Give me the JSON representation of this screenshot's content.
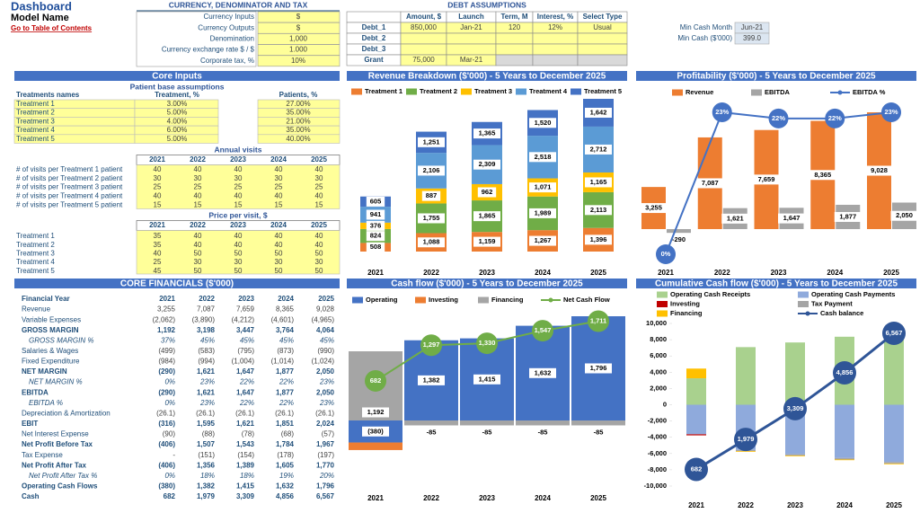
{
  "header": {
    "title": "Dashboard",
    "subtitle": "Model Name",
    "link": "Go to Table of Contents"
  },
  "currency": {
    "title": "CURRENCY, DENOMINATOR AND TAX",
    "rows": [
      [
        "Currency Inputs",
        "$"
      ],
      [
        "Currency Outputs",
        "$"
      ],
      [
        "Denomination",
        "1,000"
      ],
      [
        "Currency exchange rate $ / $",
        "1.000"
      ],
      [
        "Corporate tax, %",
        "10%"
      ]
    ]
  },
  "debt": {
    "title": "DEBT ASSUMPTIONS",
    "columns": [
      "Amount, $",
      "Launch",
      "Term, M",
      "Interest, %",
      "Select Type"
    ],
    "rows": [
      [
        "Debt_1",
        "850,000",
        "Jan-21",
        "120",
        "12%",
        "Usual"
      ],
      [
        "Debt_2"
      ],
      [
        "Debt_3"
      ],
      [
        "Grant",
        "75,000",
        "Mar-21"
      ]
    ]
  },
  "min_cash": {
    "rows": [
      [
        "Min Cash Month",
        "Jun-21"
      ],
      [
        "Min Cash ($'000)",
        "399.0"
      ]
    ]
  },
  "core_inputs": {
    "title": "Core Inputs",
    "patients": {
      "title": "Patient base assumptions",
      "columns": [
        "Treatments names",
        "Treatment, %",
        "Patients, %"
      ],
      "rows": [
        [
          "Treatment 1",
          "3.00%",
          "27.00%"
        ],
        [
          "Treatment 2",
          "5.00%",
          "35.00%"
        ],
        [
          "Treatment 3",
          "4.00%",
          "21.00%"
        ],
        [
          "Treatment 4",
          "6.00%",
          "35.00%"
        ],
        [
          "Treatment 5",
          "5.00%",
          "40.00%"
        ]
      ]
    },
    "visits": {
      "title": "Annual visits",
      "years": [
        "2021",
        "2022",
        "2023",
        "2024",
        "2025"
      ],
      "rows": [
        {
          "label": "# of visits per Treatment 1 patient",
          "values": [
            "40",
            "40",
            "40",
            "40",
            "40"
          ]
        },
        {
          "label": "# of visits per Treatment 2 patient",
          "values": [
            "30",
            "30",
            "30",
            "30",
            "30"
          ]
        },
        {
          "label": "# of visits per Treatment 3 patient",
          "values": [
            "25",
            "25",
            "25",
            "25",
            "25"
          ]
        },
        {
          "label": "# of visits per Treatment 4 patient",
          "values": [
            "40",
            "40",
            "40",
            "40",
            "40"
          ]
        },
        {
          "label": "# of visits per Treatment 5 patient",
          "values": [
            "15",
            "15",
            "15",
            "15",
            "15"
          ]
        }
      ]
    },
    "prices": {
      "title": "Price per visit, $",
      "years": [
        "2021",
        "2022",
        "2023",
        "2024",
        "2025"
      ],
      "rows": [
        {
          "label": "Treatment 1",
          "values": [
            "35",
            "40",
            "40",
            "40",
            "40"
          ]
        },
        {
          "label": "Treatment 2",
          "values": [
            "35",
            "40",
            "40",
            "40",
            "40"
          ]
        },
        {
          "label": "Treatment 3",
          "values": [
            "40",
            "50",
            "50",
            "50",
            "50"
          ]
        },
        {
          "label": "Treatment 4",
          "values": [
            "25",
            "30",
            "30",
            "30",
            "30"
          ]
        },
        {
          "label": "Treatment 5",
          "values": [
            "45",
            "50",
            "50",
            "50",
            "50"
          ]
        }
      ]
    }
  },
  "financials": {
    "title": "CORE FINANCIALS ($'000)",
    "rows": [
      {
        "label": "Financial Year",
        "style": "year",
        "values": [
          "2021",
          "2022",
          "2023",
          "2024",
          "2025"
        ]
      },
      {
        "label": "Revenue",
        "style": "normal",
        "values": [
          "3,255",
          "7,087",
          "7,659",
          "8,365",
          "9,028"
        ]
      },
      {
        "label": "Variable Expenses",
        "style": "normal",
        "values": [
          "(2,062)",
          "(3,890)",
          "(4,212)",
          "(4,601)",
          "(4,965)"
        ]
      },
      {
        "label": "GROSS MARGIN",
        "style": "bold",
        "values": [
          "1,192",
          "3,198",
          "3,447",
          "3,764",
          "4,064"
        ]
      },
      {
        "label": "GROSS MARGIN %",
        "style": "italic",
        "values": [
          "37%",
          "45%",
          "45%",
          "45%",
          "45%"
        ]
      },
      {
        "label": "Salaries & Wages",
        "style": "normal",
        "values": [
          "(499)",
          "(583)",
          "(795)",
          "(873)",
          "(990)"
        ]
      },
      {
        "label": "Fixed Expenditure",
        "style": "normal",
        "values": [
          "(984)",
          "(994)",
          "(1,004)",
          "(1,014)",
          "(1,024)"
        ]
      },
      {
        "label": "NET MARGIN",
        "style": "bold",
        "values": [
          "(290)",
          "1,621",
          "1,647",
          "1,877",
          "2,050"
        ]
      },
      {
        "label": "NET MARGIN %",
        "style": "italic",
        "values": [
          "0%",
          "23%",
          "22%",
          "22%",
          "23%"
        ]
      },
      {
        "label": "EBITDA",
        "style": "bold",
        "values": [
          "(290)",
          "1,621",
          "1,647",
          "1,877",
          "2,050"
        ]
      },
      {
        "label": "EBITDA %",
        "style": "italic",
        "values": [
          "0%",
          "23%",
          "22%",
          "22%",
          "23%"
        ]
      },
      {
        "label": "Depreciation & Amortization",
        "style": "normal",
        "values": [
          "(26.1)",
          "(26.1)",
          "(26.1)",
          "(26.1)",
          "(26.1)"
        ]
      },
      {
        "label": "EBIT",
        "style": "bold",
        "values": [
          "(316)",
          "1,595",
          "1,621",
          "1,851",
          "2,024"
        ]
      },
      {
        "label": "Net Interest Expense",
        "style": "normal",
        "values": [
          "(90)",
          "(88)",
          "(78)",
          "(68)",
          "(57)"
        ]
      },
      {
        "label": "Net Profit Before Tax",
        "style": "bold",
        "values": [
          "(406)",
          "1,507",
          "1,543",
          "1,784",
          "1,967"
        ]
      },
      {
        "label": "Tax Expense",
        "style": "normal",
        "values": [
          "-",
          "(151)",
          "(154)",
          "(178)",
          "(197)"
        ]
      },
      {
        "label": "Net Profit After Tax",
        "style": "bold",
        "values": [
          "(406)",
          "1,356",
          "1,389",
          "1,605",
          "1,770"
        ]
      },
      {
        "label": "Net Profit After Tax %",
        "style": "italic",
        "values": [
          "0%",
          "18%",
          "18%",
          "19%",
          "20%"
        ]
      },
      {
        "label": "Operating Cash Flows",
        "style": "bold",
        "values": [
          "(380)",
          "1,382",
          "1,415",
          "1,632",
          "1,796"
        ]
      },
      {
        "label": "Cash",
        "style": "bold",
        "values": [
          "682",
          "1,979",
          "3,309",
          "4,856",
          "6,567"
        ]
      }
    ]
  },
  "revenue_chart": {
    "type": "stacked-bar",
    "title": "Revenue Breakdown ($'000) - 5 Years to December 2025",
    "categories": [
      "2021",
      "2022",
      "2023",
      "2024",
      "2025"
    ],
    "series": [
      {
        "name": "Treatment 1",
        "color": "#ED7D31",
        "values": [
          508,
          1088,
          1159,
          1267,
          1396
        ],
        "value_labels": [
          "508",
          "1,088",
          "1,159",
          "1,267",
          "1,396"
        ]
      },
      {
        "name": "Treatment 2",
        "color": "#70AD47",
        "values": [
          824,
          1755,
          1865,
          1989,
          2113
        ],
        "value_labels": [
          "824",
          "1,755",
          "1,865",
          "1,989",
          "2,113"
        ]
      },
      {
        "name": "Treatment 3",
        "color": "#FFC000",
        "values": [
          376,
          887,
          962,
          1071,
          1165
        ],
        "value_labels": [
          "376",
          "887",
          "962",
          "1,071",
          "1,165"
        ]
      },
      {
        "name": "Treatment 4",
        "color": "#5B9BD5",
        "values": [
          941,
          2106,
          2309,
          2518,
          2712
        ],
        "value_labels": [
          "941",
          "2,106",
          "2,309",
          "2,518",
          "2,712"
        ]
      },
      {
        "name": "Treatment 5",
        "color": "#4472C4",
        "values": [
          605,
          1251,
          1365,
          1520,
          1642
        ],
        "value_labels": [
          "605",
          "1,251",
          "1,365",
          "1,520",
          "1,642"
        ]
      }
    ]
  },
  "profit_chart": {
    "type": "bar-line",
    "title": "Profitability ($'000) - 5 Years to December 2025",
    "categories": [
      "2021",
      "2022",
      "2023",
      "2024",
      "2025"
    ],
    "series": [
      {
        "name": "Revenue",
        "color": "#ED7D31",
        "values": [
          3255,
          7087,
          7659,
          8365,
          9028
        ],
        "value_labels": [
          "3,255",
          "7,087",
          "7,659",
          "8,365",
          "9,028"
        ]
      },
      {
        "name": "EBITDA",
        "color": "#A5A5A5",
        "values": [
          -290,
          1621,
          1647,
          1877,
          2050
        ],
        "value_labels": [
          "-290",
          "1,621",
          "1,647",
          "1,877",
          "2,050"
        ]
      },
      {
        "name": "EBITDA %",
        "color": "#4472C4",
        "type": "line",
        "axis": "y2",
        "values": [
          0,
          23,
          22,
          22,
          23
        ],
        "value_labels": [
          "0%",
          "23%",
          "22%",
          "22%",
          "23%"
        ]
      }
    ]
  },
  "cashflow_chart": {
    "type": "stacked-bar-line",
    "title": "Cash flow ($'000) - 5 Years to December 2025",
    "categories": [
      "2021",
      "2022",
      "2023",
      "2024",
      "2025"
    ],
    "series": [
      {
        "name": "Operating",
        "color": "#4472C4",
        "values": [
          -380,
          1382,
          1415,
          1632,
          1796
        ],
        "value_labels": [
          "(380)",
          "1,382",
          "1,415",
          "1,632",
          "1,796"
        ]
      },
      {
        "name": "Investing",
        "color": "#ED7D31",
        "values": [
          -130,
          0,
          0,
          0,
          0
        ]
      },
      {
        "name": "Financing",
        "color": "#A5A5A5",
        "values": [
          1192,
          -85,
          -85,
          -85,
          -85
        ],
        "value_labels": [
          "1,192",
          "-85",
          "-85",
          "-85",
          "-85"
        ]
      },
      {
        "name": "Net Cash Flow",
        "color": "#70AD47",
        "type": "line",
        "values": [
          682,
          1297,
          1330,
          1547,
          1711
        ],
        "value_labels": [
          "682",
          "1,297",
          "1,330",
          "1,547",
          "1,711"
        ]
      }
    ]
  },
  "cumulative_chart": {
    "type": "stacked-bar-line",
    "title": "Cumulative Cash flow ($'000) - 5 Years to December 2025",
    "categories": [
      "2021",
      "2022",
      "2023",
      "2024",
      "2025"
    ],
    "ylim": [
      -10000,
      10000
    ],
    "yticks": [
      {
        "value": 10000,
        "label": "10,000"
      },
      {
        "value": 8000,
        "label": "8,000"
      },
      {
        "value": 6000,
        "label": "6,000"
      },
      {
        "value": 4000,
        "label": "4,000"
      },
      {
        "value": 2000,
        "label": "2,000"
      },
      0,
      {
        "value": -2000,
        "label": "-2,000"
      },
      {
        "value": -4000,
        "label": "-4,000"
      },
      {
        "value": -6000,
        "label": "-6,000"
      },
      {
        "value": -8000,
        "label": "-8,000"
      },
      {
        "value": -10000,
        "label": "-10,000"
      }
    ],
    "series": [
      {
        "name": "Operating Cash Receipts",
        "color": "#A9D18E",
        "values": [
          3255,
          7087,
          7659,
          8365,
          9028
        ]
      },
      {
        "name": "Operating Cash Payments",
        "color": "#8FAADC",
        "values": [
          -3635,
          -5554,
          -6090,
          -6555,
          -7035
        ]
      },
      {
        "name": "Investing",
        "color": "#C00000",
        "values": [
          -130,
          0,
          0,
          0,
          0
        ]
      },
      {
        "name": "Tax Payment",
        "color": "#A5A5A5",
        "values": [
          0,
          -151,
          -154,
          -178,
          -197
        ]
      },
      {
        "name": "Financing",
        "color": "#FFC000",
        "values": [
          1192,
          -85,
          -85,
          -85,
          -85
        ]
      },
      {
        "name": "Cash balance",
        "color": "#2F5597",
        "type": "line",
        "axis": "y2",
        "values": [
          682,
          1979,
          3309,
          4856,
          6567
        ],
        "value_labels": [
          "682",
          "1,979",
          "3,309",
          "4,856",
          "6,567"
        ]
      }
    ]
  }
}
